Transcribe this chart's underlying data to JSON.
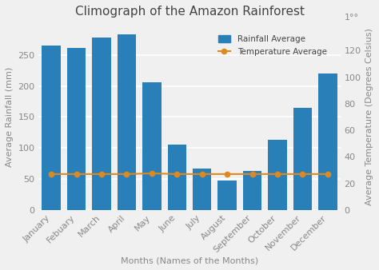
{
  "title": "Climograph of the Amazon Rainforest",
  "months": [
    "January",
    "Febuary",
    "March",
    "April",
    "May",
    "June",
    "July",
    "August",
    "September",
    "October",
    "November",
    "December"
  ],
  "rainfall": [
    265,
    261,
    278,
    283,
    206,
    105,
    67,
    47,
    63,
    113,
    165,
    220
  ],
  "temperature": [
    27,
    27,
    27,
    27,
    27.5,
    27,
    27,
    27,
    27,
    27,
    27,
    27
  ],
  "bar_color": "#2980b9",
  "line_color": "#e08820",
  "ylabel_left": "Average Rainfall (mm)",
  "ylabel_right": "Average Temperature (Degrees Celsius)",
  "xlabel": "Months (Names of the Months)",
  "ylim_left": [
    0,
    300
  ],
  "ylim_right": [
    0,
    140
  ],
  "yticks_left": [
    0,
    50,
    100,
    150,
    200,
    250
  ],
  "yticks_right": [
    0,
    20,
    40,
    60,
    80,
    100,
    120
  ],
  "background_color": "#f0f0f0",
  "plot_bg_color": "#f0f0f0",
  "grid_color": "#ffffff",
  "title_fontsize": 11,
  "label_fontsize": 8,
  "tick_fontsize": 8,
  "legend_labels": [
    "Rainfall Average",
    "Temperature Average"
  ]
}
